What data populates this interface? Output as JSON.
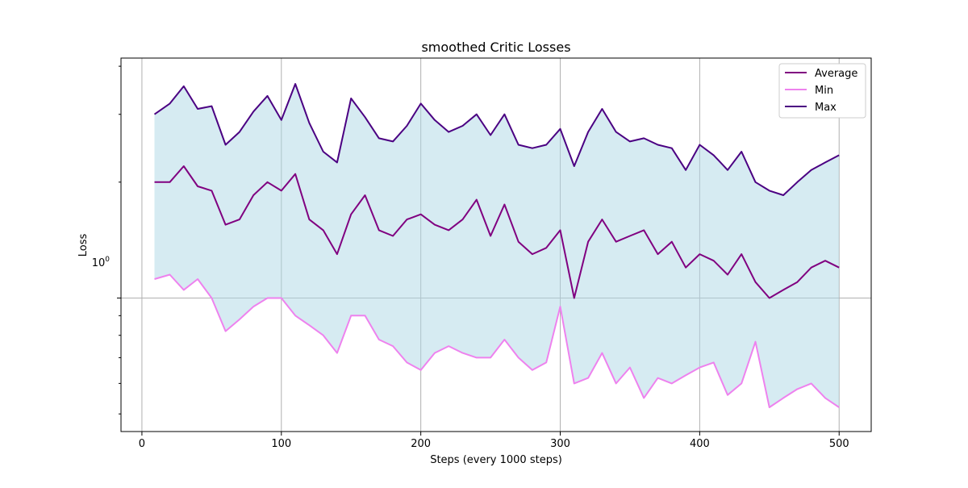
{
  "chart_data": {
    "type": "line",
    "title": "smoothed Critic Losses",
    "xlabel": "Steps (every 1000 steps)",
    "ylabel": "Loss",
    "xlim": [
      -15,
      523
    ],
    "ylim": [
      0.45,
      4.2
    ],
    "yscale": "log",
    "grid": true,
    "legend_position": "top-right",
    "x_ticks": [
      0,
      100,
      200,
      300,
      400,
      500
    ],
    "x_tick_labels": [
      "0",
      "100",
      "200",
      "300",
      "400",
      "500"
    ],
    "y_major_tick_label": {
      "base": "10",
      "exponent": "0",
      "value": 1
    },
    "fill_color": "#add8e6",
    "fill_between": "Min and Max",
    "x": [
      9,
      20,
      30,
      40,
      50,
      60,
      70,
      80,
      90,
      100,
      110,
      120,
      130,
      140,
      150,
      160,
      170,
      180,
      190,
      200,
      210,
      220,
      230,
      240,
      250,
      260,
      270,
      280,
      290,
      300,
      310,
      320,
      330,
      340,
      350,
      360,
      370,
      380,
      390,
      400,
      410,
      420,
      430,
      440,
      450,
      460,
      470,
      480,
      490,
      500
    ],
    "series": [
      {
        "name": "Average",
        "color": "#800080",
        "values": [
          2.0,
          2.0,
          2.2,
          1.95,
          1.9,
          1.55,
          1.6,
          1.85,
          2.0,
          1.9,
          2.1,
          1.6,
          1.5,
          1.3,
          1.65,
          1.85,
          1.5,
          1.45,
          1.6,
          1.65,
          1.55,
          1.5,
          1.6,
          1.8,
          1.45,
          1.75,
          1.4,
          1.3,
          1.35,
          1.5,
          1.0,
          1.4,
          1.6,
          1.4,
          1.45,
          1.5,
          1.3,
          1.4,
          1.2,
          1.3,
          1.25,
          1.15,
          1.3,
          1.1,
          1.0,
          1.05,
          1.1,
          1.2,
          1.25,
          1.2
        ]
      },
      {
        "name": "Min",
        "color": "#ee82ee",
        "values": [
          1.12,
          1.15,
          1.05,
          1.12,
          1.0,
          0.82,
          0.88,
          0.95,
          1.0,
          1.0,
          0.9,
          0.85,
          0.8,
          0.72,
          0.9,
          0.9,
          0.78,
          0.75,
          0.68,
          0.65,
          0.72,
          0.75,
          0.72,
          0.7,
          0.7,
          0.78,
          0.7,
          0.65,
          0.68,
          0.95,
          0.6,
          0.62,
          0.72,
          0.6,
          0.66,
          0.55,
          0.62,
          0.6,
          0.63,
          0.66,
          0.68,
          0.56,
          0.6,
          0.77,
          0.52,
          0.55,
          0.58,
          0.6,
          0.55,
          0.52
        ]
      },
      {
        "name": "Max",
        "color": "#4b0082",
        "values": [
          3.0,
          3.2,
          3.55,
          3.1,
          3.15,
          2.5,
          2.7,
          3.05,
          3.35,
          2.9,
          3.6,
          2.85,
          2.4,
          2.25,
          3.3,
          2.95,
          2.6,
          2.55,
          2.8,
          3.2,
          2.9,
          2.7,
          2.8,
          3.0,
          2.65,
          3.0,
          2.5,
          2.45,
          2.5,
          2.75,
          2.2,
          2.7,
          3.1,
          2.7,
          2.55,
          2.6,
          2.5,
          2.45,
          2.15,
          2.5,
          2.35,
          2.15,
          2.4,
          2.0,
          1.9,
          1.85,
          2.0,
          2.15,
          2.25,
          2.35
        ]
      }
    ]
  }
}
